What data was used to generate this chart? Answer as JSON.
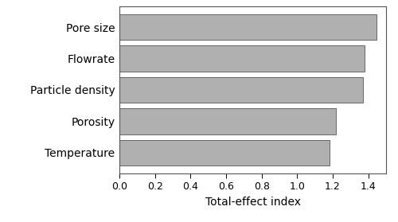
{
  "categories": [
    "Temperature",
    "Porosity",
    "Particle density",
    "Flowrate",
    "Pore size"
  ],
  "values": [
    1.18,
    1.22,
    1.37,
    1.38,
    1.445
  ],
  "bar_color": "#b0b0b0",
  "bar_edgecolor": "#666666",
  "xlabel": "Total-effect index",
  "xlim": [
    0.0,
    1.5
  ],
  "xticks": [
    0.0,
    0.2,
    0.4,
    0.6,
    0.8,
    1.0,
    1.2,
    1.4
  ],
  "xtick_labels": [
    "0.0",
    "0.2",
    "0.4",
    "0.6",
    "0.8",
    "1.0",
    "1.2",
    "1.4"
  ],
  "background_color": "#ffffff",
  "xlabel_fontsize": 10,
  "tick_fontsize": 9,
  "label_fontsize": 10,
  "bar_height": 0.82
}
